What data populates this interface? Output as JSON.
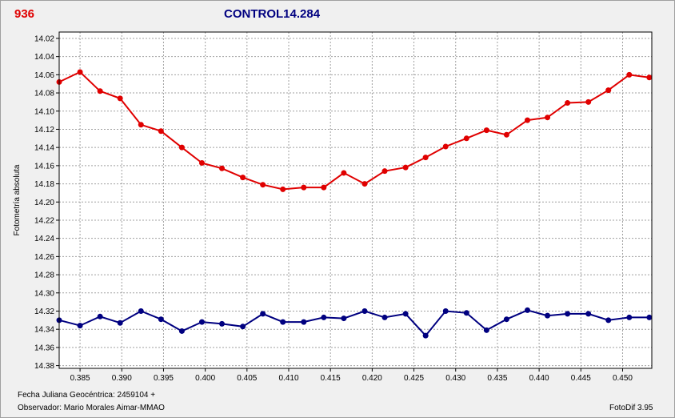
{
  "star_id": "936",
  "title": "CONTROL14.284",
  "footer": {
    "jd_label": "Fecha Juliana Geocéntrica: 2459104 +",
    "observer_label": "Observador: Mario Morales Aimar-MMAO",
    "software": "FotoDif 3.95"
  },
  "colors": {
    "series1": "#e00000",
    "series2": "#000080",
    "grid": "#a0a0a0",
    "plot_bg": "#ffffff"
  },
  "chart_data": {
    "type": "line",
    "title": "CONTROL14.284",
    "xlabel": "",
    "ylabel": "Fotometría absoluta",
    "xlim": [
      0.3825,
      0.4535
    ],
    "ylim": [
      14.383,
      14.013
    ],
    "y_inverted": true,
    "grid": true,
    "x_ticks": [
      "0.385",
      "0.390",
      "0.395",
      "0.400",
      "0.405",
      "0.410",
      "0.415",
      "0.420",
      "0.425",
      "0.430",
      "0.435",
      "0.440",
      "0.445",
      "0.450"
    ],
    "y_ticks": [
      "14.02",
      "14.04",
      "14.06",
      "14.08",
      "14.10",
      "14.12",
      "14.14",
      "14.16",
      "14.18",
      "14.20",
      "14.22",
      "14.24",
      "14.26",
      "14.28",
      "14.30",
      "14.32",
      "14.34",
      "14.36",
      "14.38"
    ],
    "series": [
      {
        "color": "#e00000",
        "x": [
          0.3825,
          0.385,
          0.3874,
          0.3898,
          0.3923,
          0.3947,
          0.3972,
          0.3996,
          0.402,
          0.4045,
          0.4069,
          0.4093,
          0.4118,
          0.4142,
          0.4166,
          0.4191,
          0.4215,
          0.424,
          0.4264,
          0.4288,
          0.4313,
          0.4337,
          0.4361,
          0.4386,
          0.441,
          0.4434,
          0.4459,
          0.4483,
          0.4508,
          0.4532
        ],
        "y": [
          14.068,
          14.057,
          14.078,
          14.086,
          14.115,
          14.122,
          14.14,
          14.157,
          14.163,
          14.173,
          14.181,
          14.186,
          14.184,
          14.184,
          14.168,
          14.18,
          14.166,
          14.162,
          14.151,
          14.139,
          14.13,
          14.121,
          14.126,
          14.11,
          14.107,
          14.091,
          14.09,
          14.077,
          14.06,
          14.063
        ]
      },
      {
        "color": "#000080",
        "x": [
          0.3825,
          0.385,
          0.3874,
          0.3898,
          0.3923,
          0.3947,
          0.3972,
          0.3996,
          0.402,
          0.4045,
          0.4069,
          0.4093,
          0.4118,
          0.4142,
          0.4166,
          0.4191,
          0.4215,
          0.424,
          0.4264,
          0.4288,
          0.4313,
          0.4337,
          0.4361,
          0.4386,
          0.441,
          0.4434,
          0.4459,
          0.4483,
          0.4508,
          0.4532
        ],
        "y": [
          14.33,
          14.336,
          14.326,
          14.333,
          14.32,
          14.329,
          14.342,
          14.332,
          14.334,
          14.337,
          14.323,
          14.332,
          14.332,
          14.327,
          14.328,
          14.32,
          14.327,
          14.323,
          14.347,
          14.32,
          14.322,
          14.341,
          14.329,
          14.319,
          14.325,
          14.323,
          14.323,
          14.33,
          14.327,
          14.327
        ]
      }
    ]
  }
}
